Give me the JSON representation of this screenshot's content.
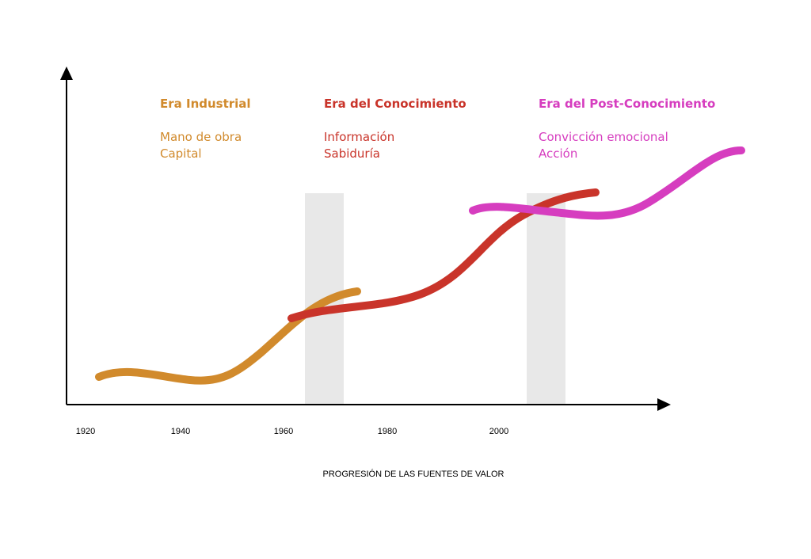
{
  "eras": [
    {
      "title": "Era Industrial",
      "items": [
        "Mano de obra",
        "Capital"
      ]
    },
    {
      "title": "Era del Conocimiento",
      "items": [
        "Información",
        "Sabiduría"
      ]
    },
    {
      "title": "Era del Post-Conocimiento",
      "items": [
        "Convicción emocional",
        "Acción"
      ]
    }
  ],
  "x_axis": {
    "ticks": [
      "1920",
      "1940",
      "1960",
      "1980",
      "2000"
    ],
    "label": "PROGRESIÓN DE LAS FUENTES DE VALOR"
  }
}
